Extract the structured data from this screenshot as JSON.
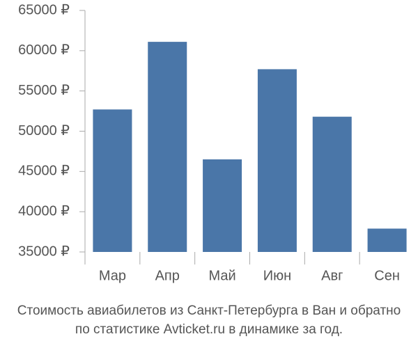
{
  "chart_data": {
    "type": "bar",
    "title": [
      "Стоимость авиабилетов из Санкт-Петербурга в Ван и обратно",
      "по статистике Avticket.ru в динамике за год."
    ],
    "categories": [
      "Мар",
      "Апр",
      "Май",
      "Июн",
      "Авг",
      "Сен"
    ],
    "values": [
      52700,
      61100,
      46500,
      57700,
      51800,
      37900
    ],
    "color": "#4a76a8",
    "ylim": [
      35000,
      65000
    ],
    "yticks": [
      {
        "value": 35000,
        "label": "35000 ₽"
      },
      {
        "value": 40000,
        "label": "40000 ₽"
      },
      {
        "value": 45000,
        "label": "45000 ₽"
      },
      {
        "value": 50000,
        "label": "50000 ₽"
      },
      {
        "value": 55000,
        "label": "55000 ₽"
      },
      {
        "value": 60000,
        "label": "60000 ₽"
      },
      {
        "value": 65000,
        "label": "65000 ₽"
      }
    ],
    "grid": false
  }
}
